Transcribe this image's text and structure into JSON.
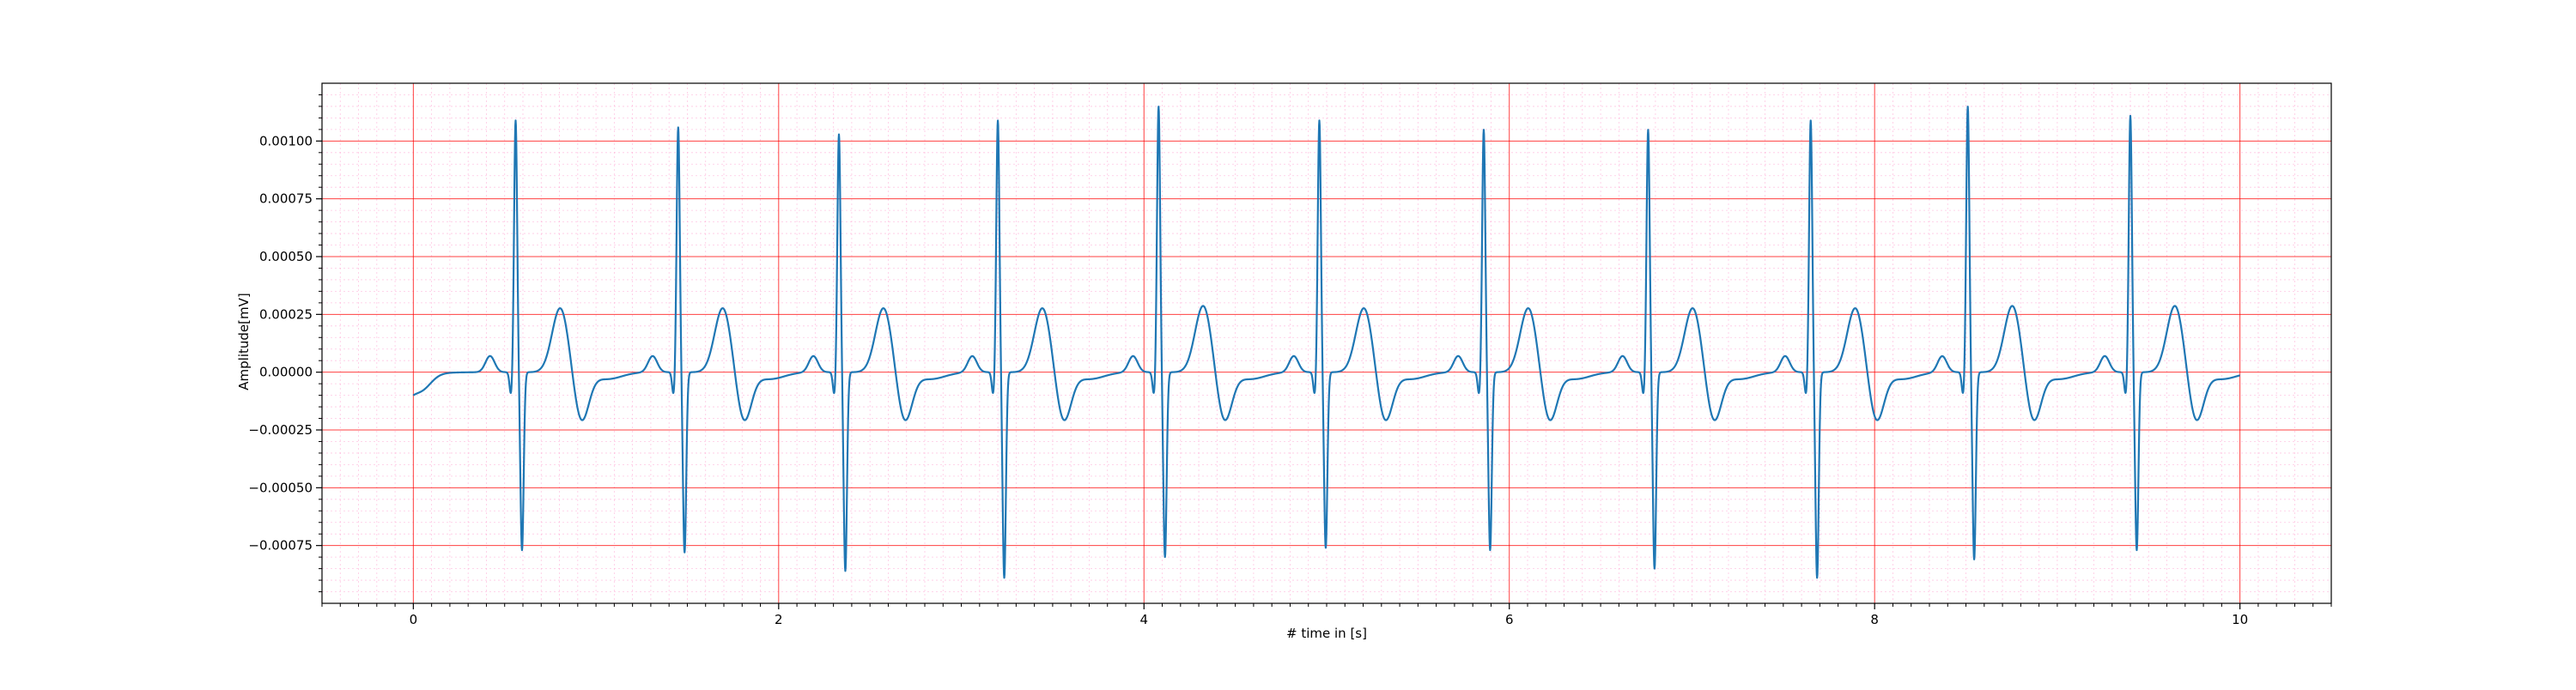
{
  "chart_data": {
    "type": "line",
    "title": "",
    "xlabel": "# time in [s]",
    "ylabel": "Amplitude[mV]",
    "xlim": [
      -0.5,
      10.5
    ],
    "ylim": [
      -0.001,
      0.00125
    ],
    "x_ticks": [
      "0",
      "2",
      "4",
      "6",
      "8",
      "10"
    ],
    "x_tick_values": [
      0,
      2,
      4,
      6,
      8,
      10
    ],
    "y_ticks": [
      "−0.00075",
      "−0.00050",
      "−0.00025",
      "0.00000",
      "0.00025",
      "0.00050",
      "0.00075",
      "0.00100"
    ],
    "y_tick_values": [
      -0.00075,
      -0.0005,
      -0.00025,
      0,
      0.00025,
      0.0005,
      0.00075,
      0.001
    ],
    "grid": {
      "major": true,
      "minor": true
    },
    "colors": {
      "line": "#1f77b4",
      "major_grid": "#ff0000",
      "minor_grid": "#ff99cc",
      "axes": "#000000"
    },
    "series": [
      {
        "beats": [
          {
            "r_time": 0.56,
            "r_peak": 0.00109,
            "s_min": -0.00077,
            "t_peak": 0.00028
          },
          {
            "r_time": 1.45,
            "r_peak": 0.00106,
            "s_min": -0.00078,
            "t_peak": 0.00028
          },
          {
            "r_time": 2.33,
            "r_peak": 0.00103,
            "s_min": -0.00086,
            "t_peak": 0.00028
          },
          {
            "r_time": 3.2,
            "r_peak": 0.00109,
            "s_min": -0.00089,
            "t_peak": 0.00028
          },
          {
            "r_time": 4.08,
            "r_peak": 0.00115,
            "s_min": -0.0008,
            "t_peak": 0.00029
          },
          {
            "r_time": 4.96,
            "r_peak": 0.00109,
            "s_min": -0.00076,
            "t_peak": 0.00028
          },
          {
            "r_time": 5.86,
            "r_peak": 0.00105,
            "s_min": -0.00077,
            "t_peak": 0.00028
          },
          {
            "r_time": 6.76,
            "r_peak": 0.00105,
            "s_min": -0.00085,
            "t_peak": 0.00028
          },
          {
            "r_time": 7.65,
            "r_peak": 0.00109,
            "s_min": -0.00089,
            "t_peak": 0.00028
          },
          {
            "r_time": 8.51,
            "r_peak": 0.00115,
            "s_min": -0.00081,
            "t_peak": 0.00029
          },
          {
            "r_time": 9.4,
            "r_peak": 0.00111,
            "s_min": -0.00077,
            "t_peak": 0.00029
          }
        ],
        "start": {
          "x": 0,
          "y": -7e-05
        },
        "end": {
          "x": 10,
          "y": 0
        }
      }
    ]
  }
}
